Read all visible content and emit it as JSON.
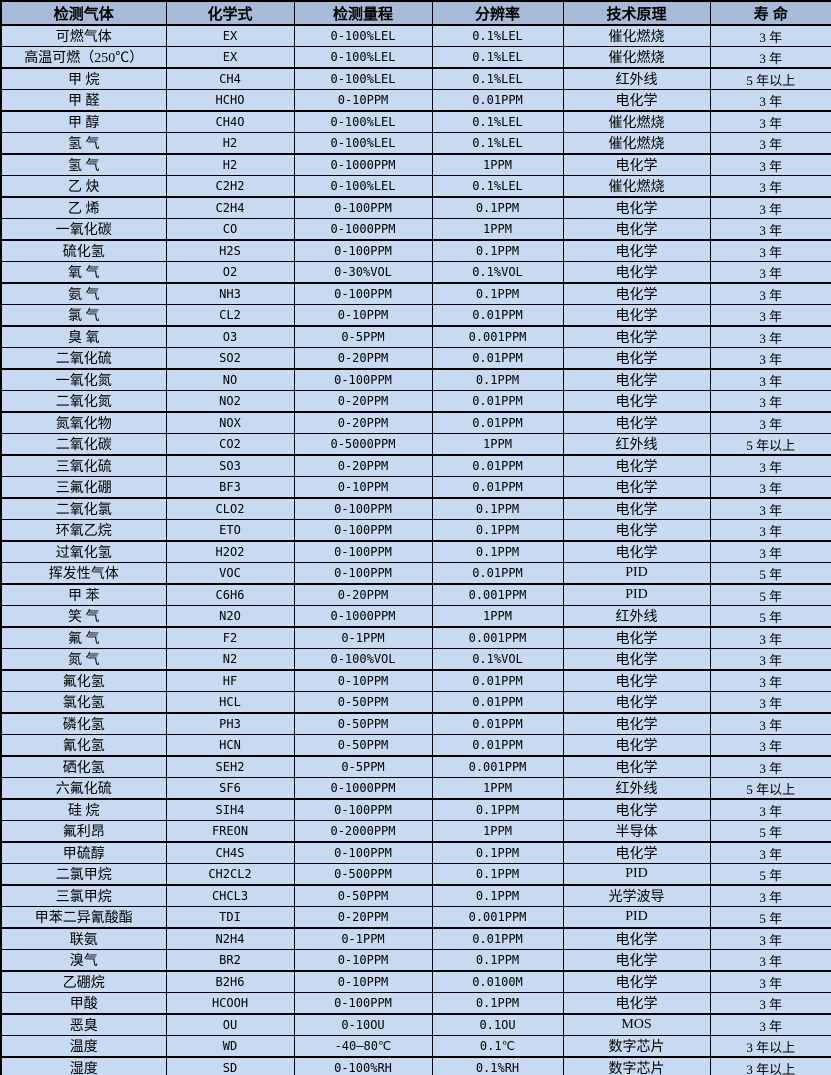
{
  "colors": {
    "header_bg": "#a7bad8",
    "row_bg": "#c7daf1",
    "border": "#000000",
    "text": "#000000"
  },
  "table": {
    "headers": [
      "检测气体",
      "化学式",
      "检测量程",
      "分辨率",
      "技术原理",
      "寿 命"
    ],
    "rows": [
      [
        "可燃气体",
        "EX",
        "0-100%LEL",
        "0.1%LEL",
        "催化燃烧",
        "3 年"
      ],
      [
        "高温可燃（250℃）",
        "EX",
        "0-100%LEL",
        "0.1%LEL",
        "催化燃烧",
        "3 年"
      ],
      [
        "甲 烷",
        "CH4",
        "0-100%LEL",
        "0.1%LEL",
        "红外线",
        "5 年以上"
      ],
      [
        "甲 醛",
        "HCHO",
        "0-10PPM",
        "0.01PPM",
        "电化学",
        "3 年"
      ],
      [
        "甲 醇",
        "CH4O",
        "0-100%LEL",
        "0.1%LEL",
        "催化燃烧",
        "3 年"
      ],
      [
        "氢 气",
        "H2",
        "0-100%LEL",
        "0.1%LEL",
        "催化燃烧",
        "3 年"
      ],
      [
        "氢 气",
        "H2",
        "0-1000PPM",
        "1PPM",
        "电化学",
        "3 年"
      ],
      [
        "乙 炔",
        "C2H2",
        "0-100%LEL",
        "0.1%LEL",
        "催化燃烧",
        "3 年"
      ],
      [
        "乙 烯",
        "C2H4",
        "0-100PPM",
        "0.1PPM",
        "电化学",
        "3 年"
      ],
      [
        "一氧化碳",
        "CO",
        "0-1000PPM",
        "1PPM",
        "电化学",
        "3 年"
      ],
      [
        "硫化氢",
        "H2S",
        "0-100PPM",
        "0.1PPM",
        "电化学",
        "3 年"
      ],
      [
        "氧 气",
        "O2",
        "0-30%VOL",
        "0.1%VOL",
        "电化学",
        "3 年"
      ],
      [
        "氨 气",
        "NH3",
        "0-100PPM",
        "0.1PPM",
        "电化学",
        "3 年"
      ],
      [
        "氯 气",
        "CL2",
        "0-10PPM",
        "0.01PPM",
        "电化学",
        "3 年"
      ],
      [
        "臭 氧",
        "O3",
        "0-5PPM",
        "0.001PPM",
        "电化学",
        "3 年"
      ],
      [
        "二氧化硫",
        "SO2",
        "0-20PPM",
        "0.01PPM",
        "电化学",
        "3 年"
      ],
      [
        "一氧化氮",
        "NO",
        "0-100PPM",
        "0.1PPM",
        "电化学",
        "3 年"
      ],
      [
        "二氧化氮",
        "NO2",
        "0-20PPM",
        "0.01PPM",
        "电化学",
        "3 年"
      ],
      [
        "氮氧化物",
        "NOX",
        "0-20PPM",
        "0.01PPM",
        "电化学",
        "3 年"
      ],
      [
        "二氧化碳",
        "CO2",
        "0-5000PPM",
        "1PPM",
        "红外线",
        "5 年以上"
      ],
      [
        "三氧化硫",
        "SO3",
        "0-20PPM",
        "0.01PPM",
        "电化学",
        "3 年"
      ],
      [
        "三氟化硼",
        "BF3",
        "0-10PPM",
        "0.01PPM",
        "电化学",
        "3 年"
      ],
      [
        "二氧化氯",
        "CLO2",
        "0-100PPM",
        "0.1PPM",
        "电化学",
        "3 年"
      ],
      [
        "环氧乙烷",
        "ETO",
        "0-100PPM",
        "0.1PPM",
        "电化学",
        "3 年"
      ],
      [
        "过氧化氢",
        "H2O2",
        "0-100PPM",
        "0.1PPM",
        "电化学",
        "3 年"
      ],
      [
        "挥发性气体",
        "VOC",
        "0-100PPM",
        "0.01PPM",
        "PID",
        "5 年"
      ],
      [
        "甲 苯",
        "C6H6",
        "0-20PPM",
        "0.001PPM",
        "PID",
        "5 年"
      ],
      [
        "笑 气",
        "N2O",
        "0-1000PPM",
        "1PPM",
        "红外线",
        "5 年"
      ],
      [
        "氟 气",
        "F2",
        "0-1PPM",
        "0.001PPM",
        "电化学",
        "3 年"
      ],
      [
        "氮 气",
        "N2",
        "0-100%VOL",
        "0.1%VOL",
        "电化学",
        "3 年"
      ],
      [
        "氟化氢",
        "HF",
        "0-10PPM",
        "0.01PPM",
        "电化学",
        "3 年"
      ],
      [
        "氯化氢",
        "HCL",
        "0-50PPM",
        "0.01PPM",
        "电化学",
        "3 年"
      ],
      [
        "磷化氢",
        "PH3",
        "0-50PPM",
        "0.01PPM",
        "电化学",
        "3 年"
      ],
      [
        "氰化氢",
        "HCN",
        "0-50PPM",
        "0.01PPM",
        "电化学",
        "3 年"
      ],
      [
        "硒化氢",
        "SEH2",
        "0-5PPM",
        "0.001PPM",
        "电化学",
        "3 年"
      ],
      [
        "六氟化硫",
        "SF6",
        "0-1000PPM",
        "1PPM",
        "红外线",
        "5 年以上"
      ],
      [
        "硅 烷",
        "SIH4",
        "0-100PPM",
        "0.1PPM",
        "电化学",
        "3 年"
      ],
      [
        "氟利昂",
        "FREON",
        "0-2000PPM",
        "1PPM",
        "半导体",
        "5 年"
      ],
      [
        "甲硫醇",
        "CH4S",
        "0-100PPM",
        "0.1PPM",
        "电化学",
        "3 年"
      ],
      [
        "二氯甲烷",
        "CH2CL2",
        "0-500PPM",
        "0.1PPM",
        "PID",
        "5 年"
      ],
      [
        "三氯甲烷",
        "CHCL3",
        "0-50PPM",
        "0.1PPM",
        "光学波导",
        "3 年"
      ],
      [
        "甲苯二异氰酸酯",
        "TDI",
        "0-20PPM",
        "0.001PPM",
        "PID",
        "5 年"
      ],
      [
        "联氨",
        "N2H4",
        "0-1PPM",
        "0.01PPM",
        "电化学",
        "3 年"
      ],
      [
        "溴气",
        "BR2",
        "0-10PPM",
        "0.1PPM",
        "电化学",
        "3 年"
      ],
      [
        "乙硼烷",
        "B2H6",
        "0-10PPM",
        "0.0100M",
        "电化学",
        "3 年"
      ],
      [
        "甲酸",
        "HCOOH",
        "0-100PPM",
        "0.1PPM",
        "电化学",
        "3 年"
      ],
      [
        "恶臭",
        "OU",
        "0-10OU",
        "0.1OU",
        "MOS",
        "3 年"
      ],
      [
        "温度",
        "WD",
        "-40—80℃",
        "0.1℃",
        "数字芯片",
        "3 年以上"
      ],
      [
        "湿度",
        "SD",
        "0-100%RH",
        "0.1%RH",
        "数字芯片",
        "3 年以上"
      ]
    ]
  }
}
